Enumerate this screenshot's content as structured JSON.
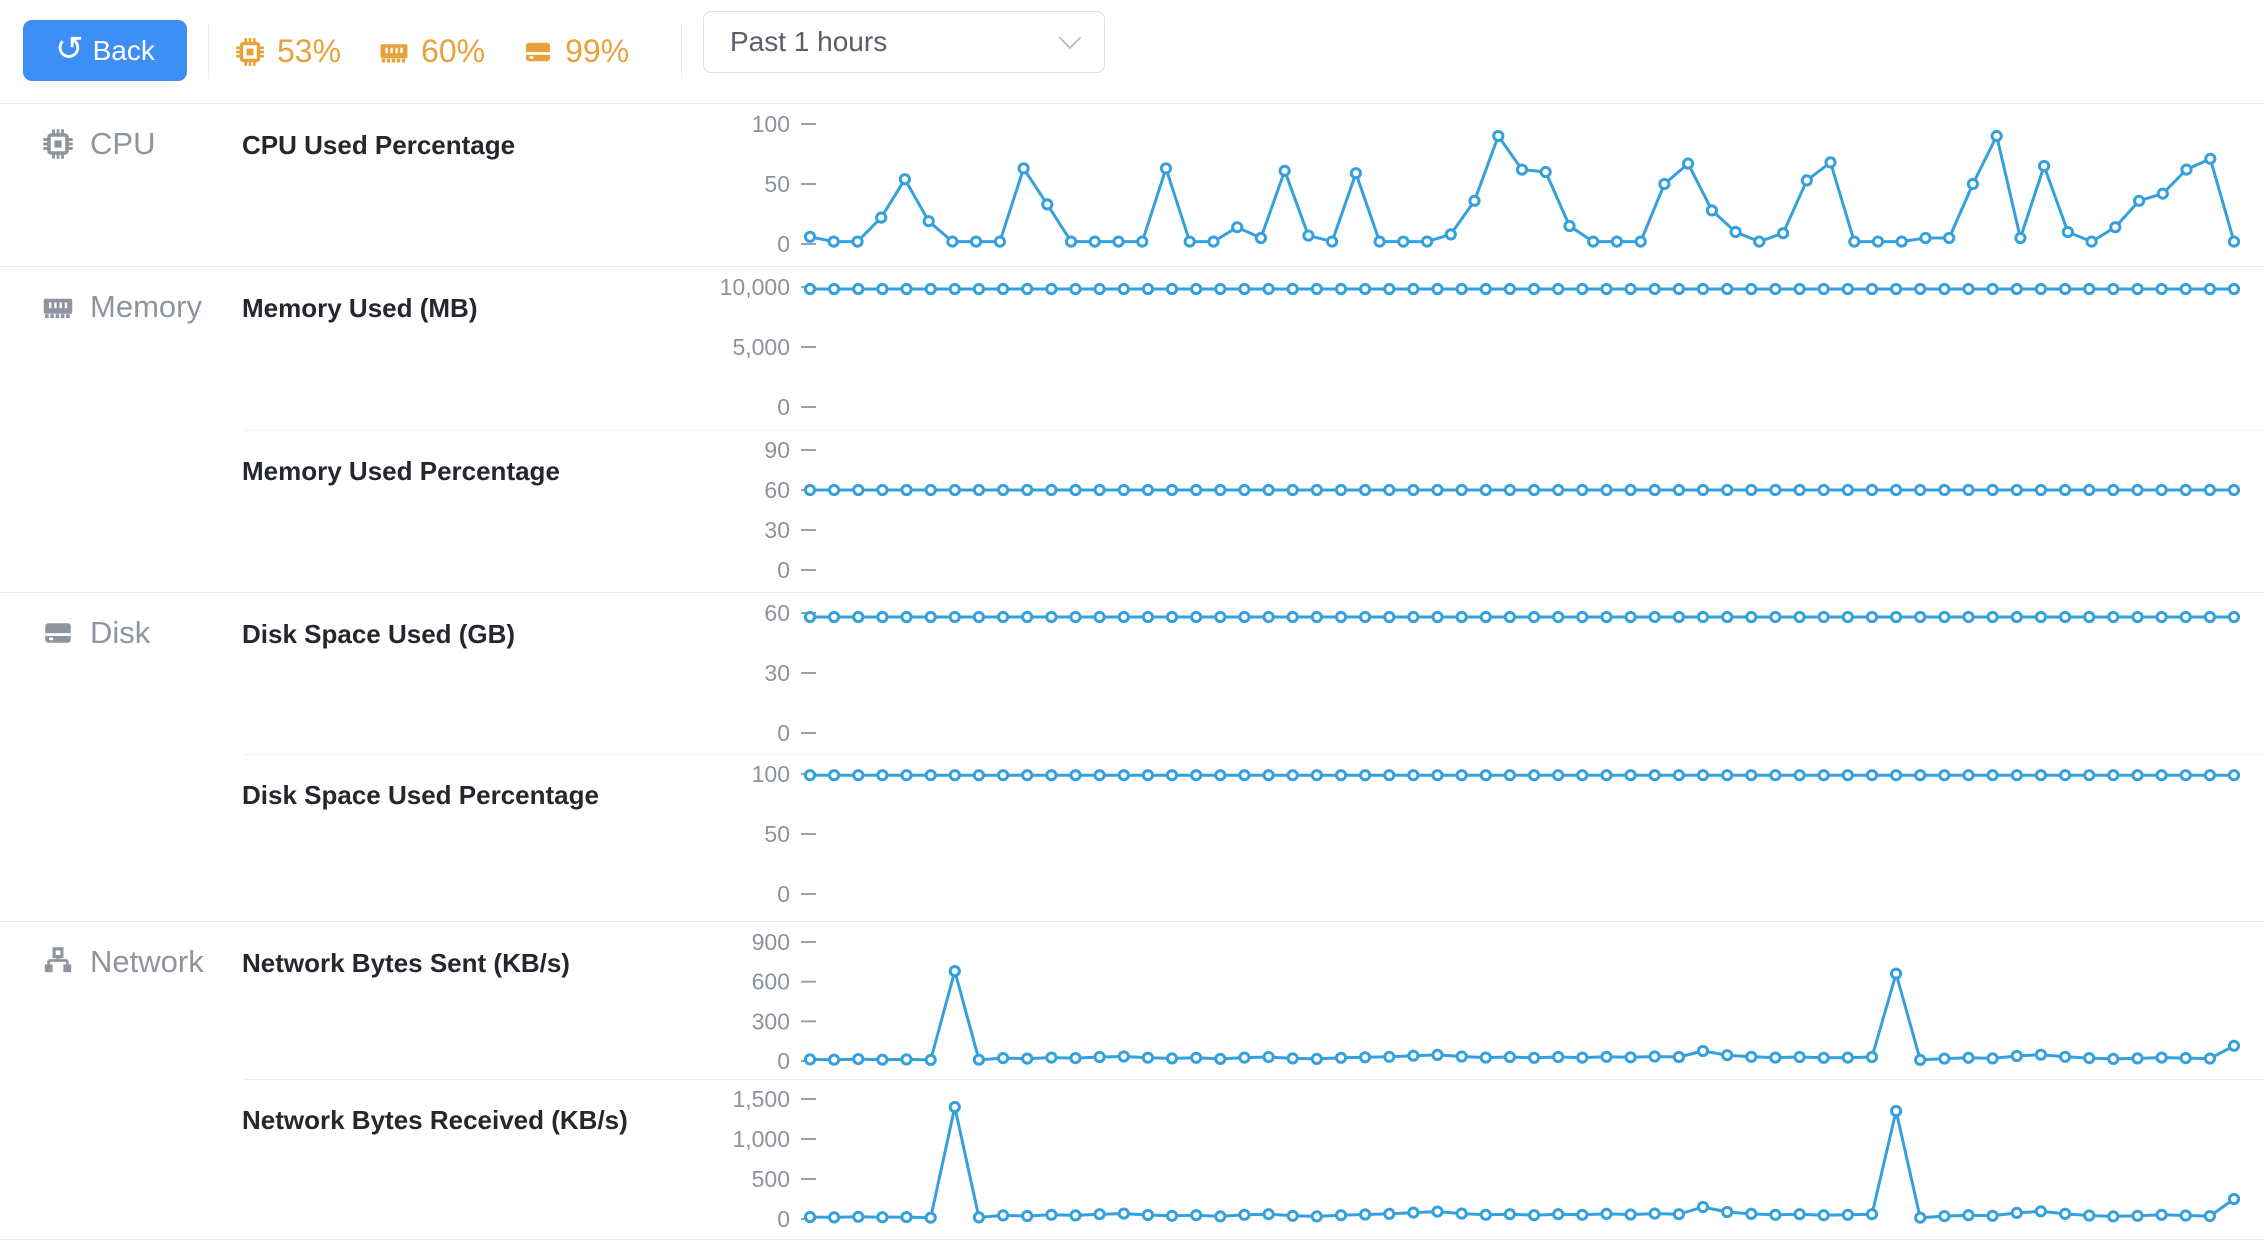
{
  "header": {
    "back_button": "Back",
    "system_stats": [
      {
        "id": "cpu",
        "icon": "cpu-chip-icon",
        "value": "53%"
      },
      {
        "id": "memory",
        "icon": "ram-icon",
        "value": "60%"
      },
      {
        "id": "disk",
        "icon": "hdd-icon",
        "value": "99%"
      }
    ],
    "time_range_select": {
      "value": "Past 1 hours"
    }
  },
  "sidebar_sections": [
    {
      "id": "cpu",
      "label": "CPU",
      "icon": "cpu-chip-icon"
    },
    {
      "id": "memory",
      "label": "Memory",
      "icon": "ram-icon"
    },
    {
      "id": "disk",
      "label": "Disk",
      "icon": "hdd-icon"
    },
    {
      "id": "network",
      "label": "Network",
      "icon": "network-hub-icon"
    }
  ],
  "colors": {
    "primary_button": "#3d8ef5",
    "warning_accent": "#e6a23c",
    "series_line": "#35a0dc",
    "muted_text": "#8f959e",
    "title_text": "#24282e",
    "divider": "#e8ebef"
  },
  "chart_data": [
    {
      "key": "cpu_used_percentage",
      "type": "line",
      "section": "CPU",
      "title": "CPU Used Percentage",
      "x_range": "Past 1 hours",
      "ylim": [
        0,
        100
      ],
      "yticks": [
        0,
        50,
        100
      ],
      "values": [
        6,
        2,
        2,
        22,
        54,
        19,
        2,
        2,
        2,
        63,
        33,
        2,
        2,
        2,
        2,
        63,
        2,
        2,
        14,
        5,
        61,
        7,
        2,
        59,
        2,
        2,
        2,
        8,
        36,
        90,
        62,
        60,
        15,
        2,
        2,
        2,
        50,
        67,
        28,
        10,
        2,
        9,
        53,
        68,
        2,
        2,
        2,
        5,
        5,
        50,
        90,
        5,
        65,
        10,
        2,
        14,
        36,
        42,
        62,
        71,
        2
      ]
    },
    {
      "key": "memory_used_mb",
      "type": "line",
      "section": "Memory",
      "title": "Memory Used (MB)",
      "x_range": "Past 1 hours",
      "ylim": [
        0,
        10000
      ],
      "yticks": [
        0,
        5000,
        10000
      ],
      "values": [
        9830,
        9830,
        9830,
        9830,
        9830,
        9830,
        9830,
        9830,
        9830,
        9830,
        9830,
        9830,
        9830,
        9830,
        9830,
        9830,
        9830,
        9830,
        9830,
        9830,
        9830,
        9830,
        9830,
        9830,
        9830,
        9830,
        9830,
        9830,
        9830,
        9830,
        9830,
        9830,
        9830,
        9830,
        9830,
        9830,
        9830,
        9830,
        9830,
        9830,
        9830,
        9830,
        9830,
        9830,
        9830,
        9830,
        9830,
        9830,
        9830,
        9830,
        9830,
        9830,
        9830,
        9830,
        9830,
        9830,
        9830,
        9830,
        9830,
        9830
      ]
    },
    {
      "key": "memory_used_percentage",
      "type": "line",
      "section": "Memory",
      "title": "Memory Used Percentage",
      "x_range": "Past 1 hours",
      "ylim": [
        0,
        90
      ],
      "yticks": [
        0,
        30,
        60,
        90
      ],
      "values": [
        60,
        60,
        60,
        60,
        60,
        60,
        60,
        60,
        60,
        60,
        60,
        60,
        60,
        60,
        60,
        60,
        60,
        60,
        60,
        60,
        60,
        60,
        60,
        60,
        60,
        60,
        60,
        60,
        60,
        60,
        60,
        60,
        60,
        60,
        60,
        60,
        60,
        60,
        60,
        60,
        60,
        60,
        60,
        60,
        60,
        60,
        60,
        60,
        60,
        60,
        60,
        60,
        60,
        60,
        60,
        60,
        60,
        60,
        60,
        60
      ]
    },
    {
      "key": "disk_space_used_gb",
      "type": "line",
      "section": "Disk",
      "title": "Disk Space Used (GB)",
      "x_range": "Past 1 hours",
      "ylim": [
        0,
        60
      ],
      "yticks": [
        0,
        30,
        60
      ],
      "values": [
        58,
        58,
        58,
        58,
        58,
        58,
        58,
        58,
        58,
        58,
        58,
        58,
        58,
        58,
        58,
        58,
        58,
        58,
        58,
        58,
        58,
        58,
        58,
        58,
        58,
        58,
        58,
        58,
        58,
        58,
        58,
        58,
        58,
        58,
        58,
        58,
        58,
        58,
        58,
        58,
        58,
        58,
        58,
        58,
        58,
        58,
        58,
        58,
        58,
        58,
        58,
        58,
        58,
        58,
        58,
        58,
        58,
        58,
        58,
        58
      ]
    },
    {
      "key": "disk_space_used_percentage",
      "type": "line",
      "section": "Disk",
      "title": "Disk Space Used Percentage",
      "x_range": "Past 1 hours",
      "ylim": [
        0,
        100
      ],
      "yticks": [
        0,
        50,
        100
      ],
      "values": [
        99,
        99,
        99,
        99,
        99,
        99,
        99,
        99,
        99,
        99,
        99,
        99,
        99,
        99,
        99,
        99,
        99,
        99,
        99,
        99,
        99,
        99,
        99,
        99,
        99,
        99,
        99,
        99,
        99,
        99,
        99,
        99,
        99,
        99,
        99,
        99,
        99,
        99,
        99,
        99,
        99,
        99,
        99,
        99,
        99,
        99,
        99,
        99,
        99,
        99,
        99,
        99,
        99,
        99,
        99,
        99,
        99,
        99,
        99,
        99
      ]
    },
    {
      "key": "network_bytes_sent_kbs",
      "type": "line",
      "section": "Network",
      "title": "Network Bytes Sent (KB/s)",
      "x_range": "Past 1 hours",
      "ylim": [
        0,
        900
      ],
      "yticks": [
        0,
        300,
        600,
        900
      ],
      "values": [
        12,
        10,
        14,
        10,
        12,
        8,
        680,
        10,
        22,
        18,
        26,
        22,
        30,
        34,
        25,
        20,
        24,
        16,
        26,
        30,
        20,
        16,
        24,
        28,
        32,
        40,
        46,
        34,
        26,
        30,
        24,
        30,
        26,
        32,
        28,
        34,
        30,
        76,
        44,
        32,
        26,
        30,
        24,
        26,
        30,
        660,
        8,
        18,
        24,
        20,
        38,
        48,
        32,
        22,
        16,
        20,
        26,
        22,
        18,
        115
      ]
    },
    {
      "key": "network_bytes_received_kbs",
      "type": "line",
      "section": "Network",
      "title": "Network Bytes Received (KB/s)",
      "x_range": "Past 1 hours",
      "ylim": [
        0,
        1500
      ],
      "yticks": [
        0,
        500,
        1000,
        1500
      ],
      "values": [
        25,
        20,
        28,
        22,
        24,
        16,
        1400,
        20,
        45,
        38,
        52,
        45,
        60,
        68,
        50,
        40,
        48,
        32,
        52,
        60,
        40,
        32,
        48,
        56,
        64,
        80,
        92,
        68,
        52,
        60,
        48,
        60,
        52,
        64,
        56,
        68,
        60,
        150,
        88,
        64,
        52,
        60,
        48,
        52,
        60,
        1350,
        16,
        36,
        48,
        40,
        76,
        96,
        64,
        44,
        32,
        40,
        52,
        44,
        36,
        250
      ]
    }
  ]
}
